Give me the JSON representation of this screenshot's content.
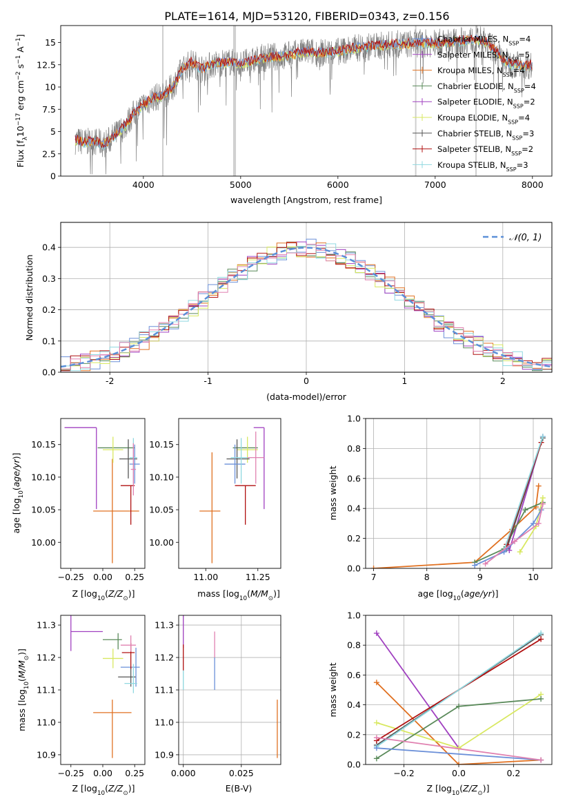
{
  "figure_title": "PLATE=1614, MJD=53120, FIBERID=0343, z=0.156",
  "colors": {
    "Chabrier MILES": "#6a8fd8",
    "Salpeter MILES": "#a040c0",
    "Kroupa MILES": "#e07020",
    "Chabrier ELODIE": "#5a8a5a",
    "Salpeter ELODIE": "#a040c0",
    "Kroupa ELODIE": "#d8e860",
    "Chabrier STELIB": "#555555",
    "Salpeter STELIB": "#b01010",
    "Kroupa STELIB": "#8fd8e0",
    "data": "#808080",
    "gaussian": "#5b8fd8",
    "pink": "#e080b0"
  },
  "chart_data": [
    {
      "type": "line",
      "panel": "spectrum",
      "xlabel": "wavelength [Angstrom, rest frame]",
      "ylabel": "Flux [fλ10⁻¹⁷ erg cm⁻² s⁻¹ A⁻¹]",
      "xlim": [
        3150,
        8200
      ],
      "ylim": [
        0,
        16.9
      ],
      "xticks": [
        4000,
        5000,
        6000,
        7000,
        8000
      ],
      "yticks": [
        0.0,
        2.5,
        5.0,
        7.5,
        10.0,
        12.5,
        15.0
      ],
      "masked_lines_x": [
        4200,
        4930,
        4945,
        6800,
        7420
      ],
      "continuum_x": [
        3300,
        3400,
        3500,
        3600,
        3700,
        3800,
        3900,
        4000,
        4100,
        4200,
        4300,
        4400,
        4500,
        4600,
        4700,
        4800,
        4900,
        5000,
        5100,
        5200,
        5300,
        5400,
        5500,
        5600,
        5700,
        5800,
        5900,
        6000,
        6100,
        6200,
        6300,
        6400,
        6500,
        6600,
        6700,
        6800,
        6900,
        7000,
        7100,
        7200,
        7300,
        7400,
        7500,
        7600,
        7700,
        7800,
        7900,
        8000
      ],
      "continuum_y": [
        4.0,
        3.8,
        3.9,
        3.6,
        4.5,
        5.5,
        7.0,
        8.0,
        8.8,
        9.0,
        10.0,
        12.0,
        12.8,
        12.0,
        12.5,
        12.7,
        12.8,
        12.6,
        12.8,
        13.2,
        13.4,
        13.4,
        13.6,
        13.8,
        14.0,
        13.8,
        13.9,
        14.0,
        14.2,
        14.4,
        14.5,
        14.6,
        14.7,
        14.8,
        14.8,
        14.9,
        14.9,
        14.9,
        15.0,
        15.1,
        15.2,
        15.3,
        15.2,
        14.3,
        13.0,
        12.5,
        12.5,
        12.4
      ],
      "series": [
        {
          "name": "Chabrier MILES, N_SSP=4"
        },
        {
          "name": "Salpeter MILES, N_SSP=5"
        },
        {
          "name": "Kroupa MILES, N_SSP=4"
        },
        {
          "name": "Chabrier ELODIE, N_SSP=4"
        },
        {
          "name": "Salpeter ELODIE, N_SSP=2"
        },
        {
          "name": "Kroupa ELODIE, N_SSP=4"
        },
        {
          "name": "Chabrier STELIB, N_SSP=3"
        },
        {
          "name": "Salpeter STELIB, N_SSP=2"
        },
        {
          "name": "Kroupa STELIB, N_SSP=3"
        }
      ],
      "legend_placement": "right"
    },
    {
      "type": "bar",
      "panel": "residuals",
      "xlabel": "(data-model)/error",
      "ylabel": "Normed distribution",
      "xlim": [
        -2.5,
        2.5
      ],
      "ylim": [
        0,
        0.48
      ],
      "xticks": [
        -2,
        -1,
        0,
        1,
        2
      ],
      "yticks": [
        0.0,
        0.1,
        0.2,
        0.3,
        0.4
      ],
      "legend": [
        "𝒩(0, 1)"
      ],
      "legend_placement": "top-right",
      "grid": true
    },
    {
      "type": "scatter",
      "panel": "age_vs_Z",
      "xlabel": "Z [log₁₀(Z/Z⊙)]",
      "ylabel": "age  [log₁₀(age/yr)]",
      "xlim": [
        -0.33,
        0.33
      ],
      "ylim": [
        9.96,
        10.19
      ],
      "xticks": [
        -0.25,
        0.0,
        0.25
      ],
      "xticklabels": [
        "−0.25",
        "0.00",
        "0.25"
      ],
      "yticks": [
        10.0,
        10.05,
        10.1,
        10.15
      ],
      "yticklabels": [
        "10.00",
        "10.05",
        "10.10",
        "10.15"
      ],
      "points": [
        {
          "x": -0.05,
          "y": 10.176,
          "xerr": [
            0.25,
            0.0
          ],
          "yerr": [
            0.125,
            0.0
          ],
          "color": "#a040c0"
        },
        {
          "x": 0.075,
          "y": 10.048,
          "xerr": [
            0.15,
            0.21
          ],
          "yerr": [
            0.08,
            0.08
          ],
          "color": "#e07020"
        },
        {
          "x": 0.1,
          "y": 10.145,
          "xerr": [
            0.14,
            0.15
          ],
          "yerr": [
            0.0,
            0.0
          ],
          "color": "#5a8a5a"
        },
        {
          "x": 0.08,
          "y": 10.142,
          "xerr": [
            0.08,
            0.08
          ],
          "yerr": [
            0.02,
            0.02
          ],
          "color": "#d8e860"
        },
        {
          "x": 0.2,
          "y": 10.128,
          "xerr": [
            0.07,
            0.07
          ],
          "yerr": [
            0.03,
            0.03
          ],
          "color": "#555555"
        },
        {
          "x": 0.25,
          "y": 10.12,
          "xerr": [
            0.04,
            0.04
          ],
          "yerr": [
            0.03,
            0.03
          ],
          "color": "#6a8fd8"
        },
        {
          "x": 0.22,
          "y": 10.087,
          "xerr": [
            0.08,
            0.03
          ],
          "yerr": [
            0.06,
            0.0
          ],
          "color": "#b01010"
        },
        {
          "x": 0.24,
          "y": 10.13,
          "xerr": [
            0.03,
            0.03
          ],
          "yerr": [
            0.04,
            0.03
          ],
          "color": "#8fd8e0"
        },
        {
          "x": 0.24,
          "y": 10.112,
          "xerr": [
            0.02,
            0.02
          ],
          "yerr": [
            0.04,
            0.04
          ],
          "color": "#e080b0"
        }
      ]
    },
    {
      "type": "scatter",
      "panel": "age_vs_mass",
      "xlabel": "mass [log₁₀(M/M⊙)]",
      "xlim": [
        10.87,
        11.36
      ],
      "ylim": [
        9.96,
        10.19
      ],
      "xticks": [
        11.0,
        11.25
      ],
      "xticklabels": [
        "11.00",
        "11.25"
      ],
      "yticks": [
        10.0,
        10.05,
        10.1,
        10.15
      ],
      "yticklabels": [
        "10.00",
        "10.05",
        "10.10",
        "10.15"
      ],
      "points": [
        {
          "x": 11.28,
          "y": 10.176,
          "xerr": [
            0.05,
            0.0
          ],
          "yerr": [
            0.125,
            0.0
          ],
          "color": "#a040c0"
        },
        {
          "x": 11.03,
          "y": 10.048,
          "xerr": [
            0.06,
            0.04
          ],
          "yerr": [
            0.08,
            0.09
          ],
          "color": "#e07020"
        },
        {
          "x": 11.2,
          "y": 10.145,
          "xerr": [
            0.07,
            0.05
          ],
          "yerr": [
            0.0,
            0.0
          ],
          "color": "#5a8a5a"
        },
        {
          "x": 11.2,
          "y": 10.142,
          "xerr": [
            0.05,
            0.05
          ],
          "yerr": [
            0.02,
            0.02
          ],
          "color": "#d8e860"
        },
        {
          "x": 11.15,
          "y": 10.128,
          "xerr": [
            0.05,
            0.06
          ],
          "yerr": [
            0.03,
            0.03
          ],
          "color": "#555555"
        },
        {
          "x": 11.14,
          "y": 10.12,
          "xerr": [
            0.05,
            0.05
          ],
          "yerr": [
            0.03,
            0.03
          ],
          "color": "#6a8fd8"
        },
        {
          "x": 11.19,
          "y": 10.087,
          "xerr": [
            0.05,
            0.05
          ],
          "yerr": [
            0.06,
            0.0
          ],
          "color": "#b01010"
        },
        {
          "x": 11.17,
          "y": 10.13,
          "xerr": [
            0.05,
            0.05
          ],
          "yerr": [
            0.04,
            0.03
          ],
          "color": "#8fd8e0"
        },
        {
          "x": 11.24,
          "y": 10.13,
          "xerr": [
            0.04,
            0.04
          ],
          "yerr": [
            0.04,
            0.04
          ],
          "color": "#e080b0"
        }
      ]
    },
    {
      "type": "line",
      "panel": "mass_weight_vs_age",
      "xlabel": "age  [log₁₀(age/yr)]",
      "ylabel": "mass weight",
      "xlim": [
        6.85,
        10.35
      ],
      "ylim": [
        0,
        1.0
      ],
      "xticks": [
        7,
        8,
        9,
        10
      ],
      "yticks": [
        0.0,
        0.2,
        0.4,
        0.6,
        0.8,
        1.0
      ],
      "yticklabels": [
        "0.0",
        "0.2",
        "0.4",
        "0.6",
        "0.8",
        "1.0"
      ],
      "series": [
        {
          "color": "#e07020",
          "x": [
            7.0,
            8.9,
            9.6,
            10.05,
            10.1
          ],
          "y": [
            0.0,
            0.04,
            0.26,
            0.41,
            0.55
          ]
        },
        {
          "color": "#a040c0",
          "x": [
            9.55,
            10.18
          ],
          "y": [
            0.12,
            0.88
          ]
        },
        {
          "color": "#5a8a5a",
          "x": [
            8.9,
            9.45,
            9.85,
            10.18
          ],
          "y": [
            0.04,
            0.13,
            0.39,
            0.44
          ]
        },
        {
          "color": "#d8e860",
          "x": [
            9.75,
            10.05,
            10.18
          ],
          "y": [
            0.11,
            0.28,
            0.47
          ]
        },
        {
          "color": "#555555",
          "x": [
            9.5,
            10.18
          ],
          "y": [
            0.13,
            0.87
          ]
        },
        {
          "color": "#b01010",
          "x": [
            9.5,
            10.15
          ],
          "y": [
            0.16,
            0.84
          ]
        },
        {
          "color": "#8fd8e0",
          "x": [
            9.45,
            10.18
          ],
          "y": [
            0.12,
            0.88
          ]
        },
        {
          "color": "#6a8fd8",
          "x": [
            8.9,
            9.45,
            10.0,
            10.15
          ],
          "y": [
            0.02,
            0.11,
            0.3,
            0.39
          ]
        },
        {
          "color": "#e080b0",
          "x": [
            9.1,
            9.65,
            10.1,
            10.18
          ],
          "y": [
            0.03,
            0.18,
            0.3,
            0.43
          ]
        }
      ],
      "grid": true
    },
    {
      "type": "scatter",
      "panel": "mass_vs_Z",
      "xlabel": "Z [log₁₀(Z/Z⊙)]",
      "ylabel": "mass [log₁₀(M/M⊙)]",
      "xlim": [
        -0.33,
        0.33
      ],
      "ylim": [
        10.87,
        11.33
      ],
      "xticks": [
        -0.25,
        0.0,
        0.25
      ],
      "xticklabels": [
        "−0.25",
        "0.00",
        "0.25"
      ],
      "yticks": [
        10.9,
        11.0,
        11.1,
        11.2,
        11.3
      ],
      "yticklabels": [
        "10.9",
        "11.0",
        "11.1",
        "11.2",
        "11.3"
      ],
      "points": [
        {
          "x": -0.25,
          "y": 11.28,
          "xerr": [
            0.0,
            0.25
          ],
          "yerr": [
            0.06,
            0.05
          ],
          "color": "#a040c0"
        },
        {
          "x": 0.075,
          "y": 11.03,
          "xerr": [
            0.15,
            0.15
          ],
          "yerr": [
            0.14,
            0.04
          ],
          "color": "#e07020"
        },
        {
          "x": 0.12,
          "y": 11.255,
          "xerr": [
            0.12,
            0.03
          ],
          "yerr": [
            0.03,
            0.02
          ],
          "color": "#5a8a5a"
        },
        {
          "x": 0.08,
          "y": 11.197,
          "xerr": [
            0.08,
            0.08
          ],
          "yerr": [
            0.03,
            0.03
          ],
          "color": "#d8e860"
        },
        {
          "x": 0.22,
          "y": 11.14,
          "xerr": [
            0.1,
            0.04
          ],
          "yerr": [
            0.03,
            0.03
          ],
          "color": "#555555"
        },
        {
          "x": 0.26,
          "y": 11.17,
          "xerr": [
            0.12,
            0.03
          ],
          "yerr": [
            0.06,
            0.06
          ],
          "color": "#6a8fd8"
        },
        {
          "x": 0.22,
          "y": 11.215,
          "xerr": [
            0.07,
            0.03
          ],
          "yerr": [
            0.05,
            0.03
          ],
          "color": "#b01010"
        },
        {
          "x": 0.24,
          "y": 11.12,
          "xerr": [
            0.07,
            0.03
          ],
          "yerr": [
            0.03,
            0.06
          ],
          "color": "#8fd8e0"
        },
        {
          "x": 0.22,
          "y": 11.238,
          "xerr": [
            0.08,
            0.04
          ],
          "yerr": [
            0.02,
            0.03
          ],
          "color": "#e080b0"
        }
      ]
    },
    {
      "type": "scatter",
      "panel": "mass_vs_EBV",
      "xlabel": "E(B-V)",
      "xlim": [
        -0.002,
        0.042
      ],
      "ylim": [
        10.87,
        11.33
      ],
      "xticks": [
        0.0,
        0.025
      ],
      "xticklabels": [
        "0.000",
        "0.025"
      ],
      "yticks": [
        10.9,
        11.0,
        11.1,
        11.2,
        11.3
      ],
      "yticklabels": [
        "10.9",
        "11.0",
        "11.1",
        "11.2",
        "11.3"
      ],
      "points": [
        {
          "x": 0.0,
          "y": 11.28,
          "yerr": [
            0.05,
            0.05
          ],
          "color": "#a040c0"
        },
        {
          "x": 0.0,
          "y": 11.2,
          "yerr": [
            0.04,
            0.04
          ],
          "color": "#b01010"
        },
        {
          "x": 0.0,
          "y": 11.13,
          "yerr": [
            0.03,
            0.03
          ],
          "color": "#8fd8e0"
        },
        {
          "x": 0.0135,
          "y": 11.25,
          "yerr": [
            0.05,
            0.03
          ],
          "color": "#e080b0"
        },
        {
          "x": 0.0135,
          "y": 11.15,
          "yerr": [
            0.05,
            0.05
          ],
          "color": "#6a8fd8"
        },
        {
          "x": 0.0405,
          "y": 10.98,
          "yerr": [
            0.09,
            0.09
          ],
          "color": "#e07020"
        }
      ],
      "grid": true
    },
    {
      "type": "line",
      "panel": "mass_weight_vs_Z",
      "xlabel": "Z [log₁₀(Z/Z⊙)]",
      "ylabel": "mass weight",
      "xlim": [
        -0.34,
        0.34
      ],
      "ylim": [
        0,
        1.0
      ],
      "xticks": [
        -0.2,
        0.0,
        0.2
      ],
      "xticklabels": [
        "−0.2",
        "0.0",
        "0.2"
      ],
      "yticks": [
        0.0,
        0.2,
        0.4,
        0.6,
        0.8,
        1.0
      ],
      "yticklabels": [
        "0.0",
        "0.2",
        "0.4",
        "0.6",
        "0.8",
        "1.0"
      ],
      "series": [
        {
          "color": "#a040c0",
          "x": [
            -0.3,
            0.0
          ],
          "y": [
            0.88,
            0.11
          ]
        },
        {
          "color": "#e07020",
          "x": [
            -0.3,
            0.0,
            0.3
          ],
          "y": [
            0.55,
            0.0,
            0.03
          ]
        },
        {
          "color": "#d8e860",
          "x": [
            -0.3,
            0.0,
            0.3
          ],
          "y": [
            0.28,
            0.11,
            0.47
          ]
        },
        {
          "color": "#5a8a5a",
          "x": [
            -0.3,
            0.0,
            0.3
          ],
          "y": [
            0.04,
            0.39,
            0.44
          ]
        },
        {
          "color": "#555555",
          "x": [
            -0.3,
            0.3
          ],
          "y": [
            0.13,
            0.87
          ]
        },
        {
          "color": "#b01010",
          "x": [
            -0.3,
            0.3
          ],
          "y": [
            0.16,
            0.84
          ]
        },
        {
          "color": "#8fd8e0",
          "x": [
            -0.3,
            0.3
          ],
          "y": [
            0.12,
            0.88
          ]
        },
        {
          "color": "#6a8fd8",
          "x": [
            -0.3,
            0.3
          ],
          "y": [
            0.11,
            0.03
          ]
        },
        {
          "color": "#e080b0",
          "x": [
            -0.3,
            0.3
          ],
          "y": [
            0.18,
            0.03
          ]
        }
      ],
      "grid": true
    }
  ]
}
